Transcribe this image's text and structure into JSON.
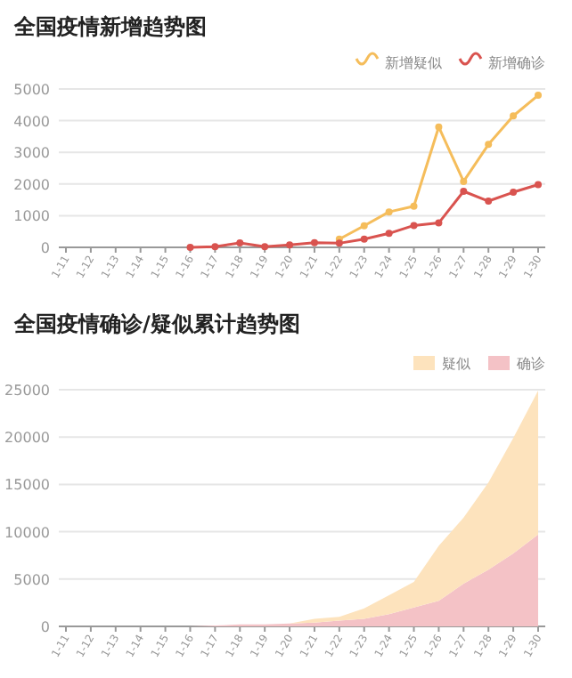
{
  "chart_data": [
    {
      "type": "line",
      "title": "全国疫情新增趋势图",
      "categories": [
        "1-11",
        "1-12",
        "1-13",
        "1-14",
        "1-15",
        "1-16",
        "1-17",
        "1-18",
        "1-19",
        "1-20",
        "1-21",
        "1-22",
        "1-23",
        "1-24",
        "1-25",
        "1-26",
        "1-27",
        "1-28",
        "1-29",
        "1-30"
      ],
      "series": [
        {
          "name": "新增疑似",
          "color": "#f5bd5b",
          "values": [
            null,
            null,
            null,
            null,
            null,
            null,
            null,
            null,
            null,
            null,
            null,
            260,
            680,
            1120,
            1300,
            3800,
            2080,
            3250,
            4150,
            4800
          ]
        },
        {
          "name": "新增确诊",
          "color": "#d9534f",
          "values": [
            null,
            null,
            null,
            null,
            null,
            0,
            20,
            140,
            20,
            80,
            150,
            130,
            260,
            440,
            690,
            770,
            1770,
            1460,
            1740,
            1980
          ]
        }
      ],
      "ylim": [
        0,
        5000
      ],
      "yticks": [
        0,
        1000,
        2000,
        3000,
        4000,
        5000
      ],
      "grid": "y",
      "legend": "top right",
      "marker": "circle",
      "line_style": "solid"
    },
    {
      "type": "area",
      "title": "全国疫情确诊/疑似累计趋势图",
      "stacked": true,
      "categories": [
        "1-11",
        "1-12",
        "1-13",
        "1-14",
        "1-15",
        "1-16",
        "1-17",
        "1-18",
        "1-19",
        "1-20",
        "1-21",
        "1-22",
        "1-23",
        "1-24",
        "1-25",
        "1-26",
        "1-27",
        "1-28",
        "1-29",
        "1-30"
      ],
      "series": [
        {
          "name": "确诊",
          "color": "#f4c2c6",
          "values": [
            0,
            0,
            0,
            0,
            0,
            0,
            100,
            200,
            200,
            300,
            400,
            600,
            800,
            1300,
            2000,
            2700,
            4500,
            6000,
            7700,
            9700
          ]
        },
        {
          "name": "疑似",
          "color": "#fde3bd",
          "values": [
            0,
            0,
            0,
            0,
            0,
            0,
            0,
            0,
            0,
            0,
            400,
            400,
            1100,
            2000,
            2700,
            5800,
            7000,
            9200,
            12200,
            15200
          ]
        }
      ],
      "ylim": [
        0,
        25000
      ],
      "yticks": [
        0,
        5000,
        10000,
        15000,
        20000,
        25000
      ],
      "grid": "y",
      "legend": "top right"
    }
  ]
}
